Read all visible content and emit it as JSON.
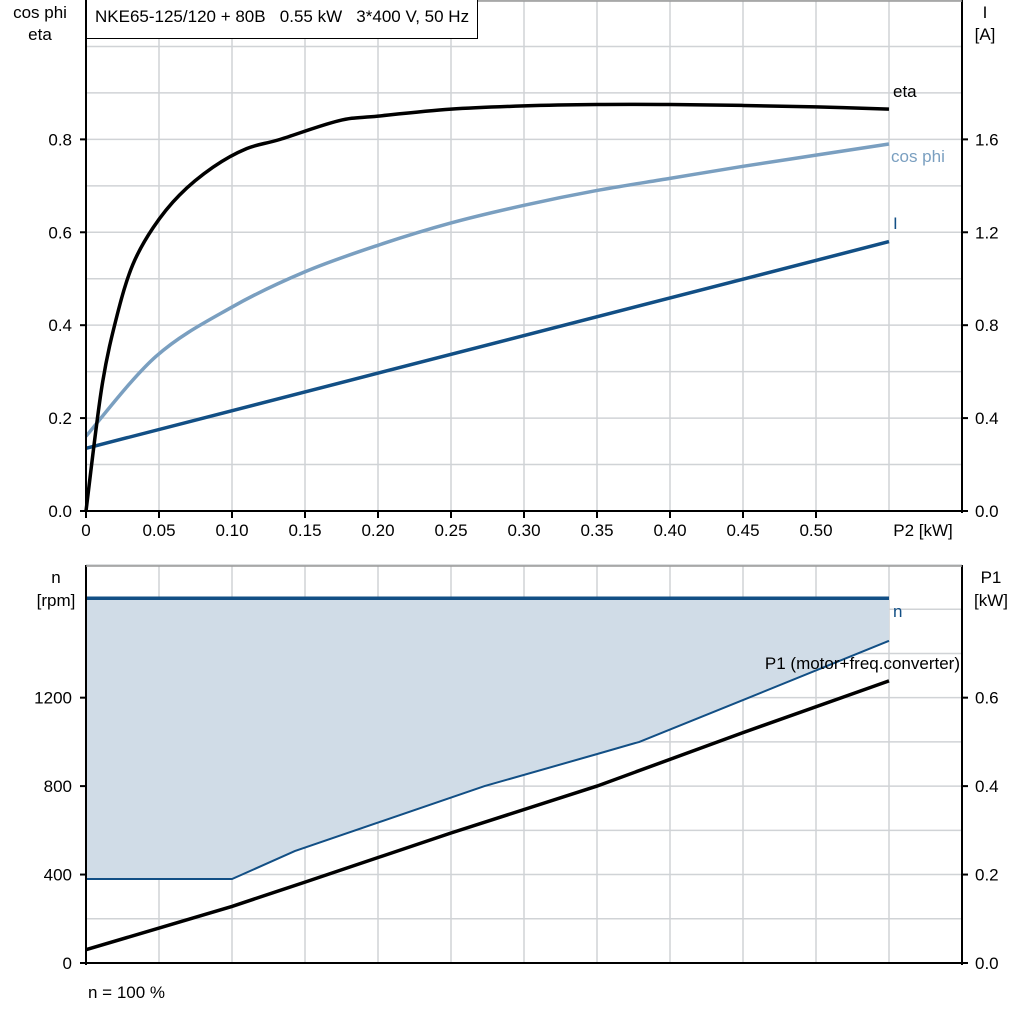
{
  "title": "NKE65-125/120 + 80B   0.55 kW   3*400 V, 50 Hz",
  "footer": "n = 100 %",
  "colors": {
    "eta": "#000000",
    "cos_phi": "#7a9fc0",
    "I": "#124f85",
    "n": "#124f85",
    "n_range_fill": "#d0dce7",
    "P1": "#000000",
    "grid": "#d0d3d6"
  },
  "chart_data": [
    {
      "type": "line",
      "left_axis_label": [
        "cos phi",
        "eta"
      ],
      "right_axis_label": [
        "I",
        "[A]"
      ],
      "xlabel": "P2 [kW]",
      "xlim": [
        0,
        0.6
      ],
      "ylim_left": [
        0,
        1.1
      ],
      "ylim_right": [
        0,
        2.2
      ],
      "x_ticks": [
        "0",
        "0.05",
        "0.10",
        "0.15",
        "0.20",
        "0.25",
        "0.30",
        "0.35",
        "0.40",
        "0.45",
        "0.50"
      ],
      "y_ticks_left": [
        "0.0",
        "0.2",
        "0.4",
        "0.6",
        "0.8"
      ],
      "y_ticks_right": [
        "0.0",
        "0.4",
        "0.8",
        "1.2",
        "1.6"
      ],
      "grid": true,
      "series": [
        {
          "name": "eta",
          "axis": "left",
          "points": [
            [
              0,
              0
            ],
            [
              0.011,
              0.27
            ],
            [
              0.022,
              0.43
            ],
            [
              0.032,
              0.53
            ],
            [
              0.046,
              0.61
            ],
            [
              0.064,
              0.68
            ],
            [
              0.087,
              0.74
            ],
            [
              0.11,
              0.78
            ],
            [
              0.133,
              0.8
            ],
            [
              0.173,
              0.84
            ],
            [
              0.2,
              0.85
            ],
            [
              0.25,
              0.865
            ],
            [
              0.3,
              0.872
            ],
            [
              0.35,
              0.875
            ],
            [
              0.4,
              0.875
            ],
            [
              0.45,
              0.873
            ],
            [
              0.5,
              0.87
            ],
            [
              0.55,
              0.865
            ]
          ]
        },
        {
          "name": "cos phi",
          "axis": "left",
          "points": [
            [
              0,
              0.161
            ],
            [
              0.048,
              0.333
            ],
            [
              0.1,
              0.439
            ],
            [
              0.15,
              0.515
            ],
            [
              0.2,
              0.572
            ],
            [
              0.25,
              0.62
            ],
            [
              0.3,
              0.658
            ],
            [
              0.35,
              0.69
            ],
            [
              0.4,
              0.716
            ],
            [
              0.45,
              0.742
            ],
            [
              0.5,
              0.766
            ],
            [
              0.55,
              0.79
            ]
          ]
        },
        {
          "name": "I",
          "axis": "right",
          "points": [
            [
              0,
              0.27
            ],
            [
              0.55,
              1.16
            ]
          ]
        }
      ]
    },
    {
      "type": "area",
      "left_axis_label": [
        "n",
        "[rpm]"
      ],
      "right_axis_label": [
        "P1",
        "[kW]"
      ],
      "xlim": [
        0,
        0.6
      ],
      "ylim_left": [
        0,
        1800
      ],
      "ylim_right": [
        0,
        0.9
      ],
      "y_ticks_left": [
        "0",
        "400",
        "800",
        "1200"
      ],
      "y_ticks_right": [
        "0.0",
        "0.2",
        "0.4",
        "0.6"
      ],
      "grid": true,
      "series": [
        {
          "name": "n",
          "axis": "left",
          "points": [
            [
              0,
              1650
            ],
            [
              0.55,
              1650
            ]
          ]
        },
        {
          "name": "",
          "axis": "left",
          "role": "min speed",
          "points": [
            [
              0,
              380
            ],
            [
              0.1,
              380
            ],
            [
              0.143,
              506
            ],
            [
              0.273,
              800
            ],
            [
              0.349,
              943
            ],
            [
              0.379,
              1000
            ],
            [
              0.451,
              1192
            ],
            [
              0.55,
              1457
            ]
          ]
        },
        {
          "name": "P1 (motor+freq.converter)",
          "axis": "right",
          "points": [
            [
              0,
              0.03
            ],
            [
              0.1,
              0.128
            ],
            [
              0.15,
              0.183
            ],
            [
              0.25,
              0.294
            ],
            [
              0.35,
              0.4
            ],
            [
              0.45,
              0.521
            ],
            [
              0.55,
              0.638
            ]
          ]
        }
      ]
    }
  ]
}
